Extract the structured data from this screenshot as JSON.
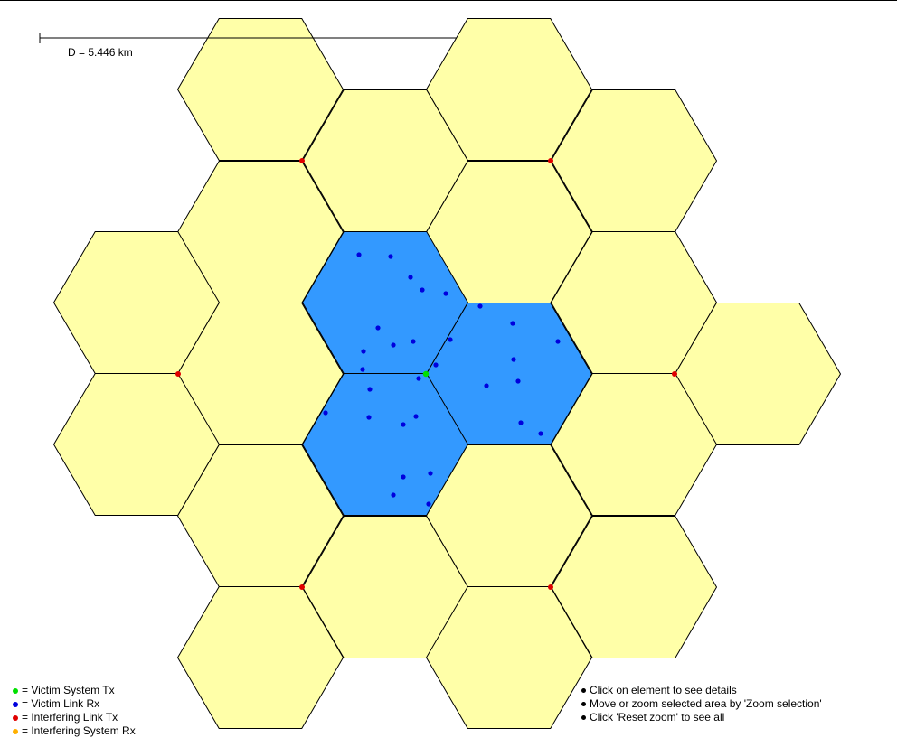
{
  "scale": {
    "label": "D = 5.446 km"
  },
  "colors": {
    "yellow_cell": "#FFFFA8",
    "blue_cell": "#3399FF",
    "victim_tx": "#00E000",
    "victim_rx": "#0000DD",
    "interfering_tx": "#E00000",
    "interfering_rx": "#FFB000"
  },
  "legend": [
    {
      "key": "victim-system-tx",
      "label": "= Victim System Tx",
      "color": "#00E000"
    },
    {
      "key": "victim-link-rx",
      "label": "= Victim Link Rx",
      "color": "#0000DD"
    },
    {
      "key": "interfering-link-tx",
      "label": "= Interfering Link Tx",
      "color": "#E00000"
    },
    {
      "key": "interfering-system-rx",
      "label": "= Interfering System Rx",
      "color": "#FFB000"
    }
  ],
  "instructions": [
    "Click on element to see details",
    "Move or zoom selected area by 'Zoom selection'",
    "Click 'Reset zoom' to see all"
  ]
}
